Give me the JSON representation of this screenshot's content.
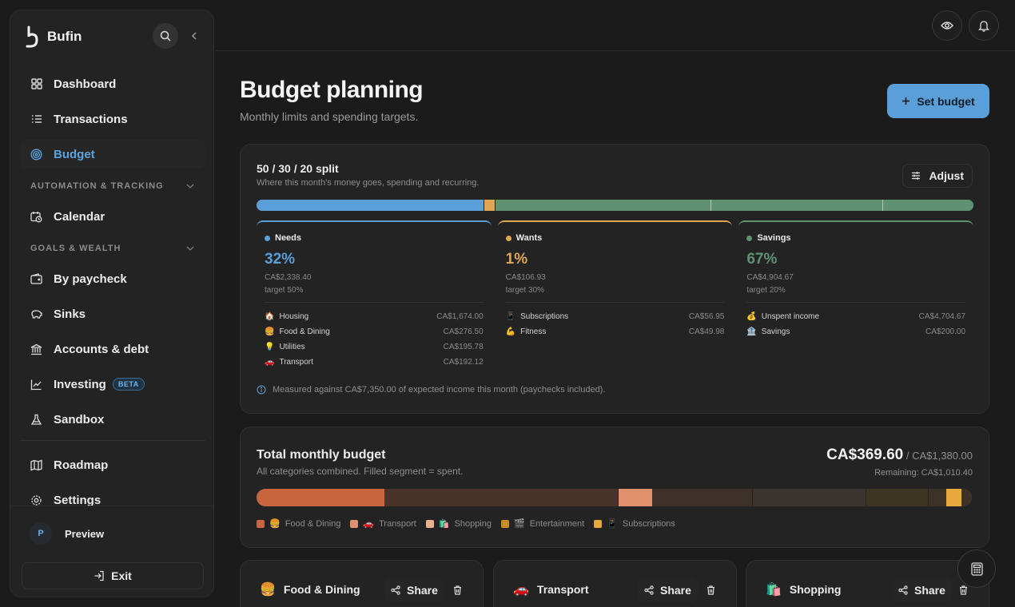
{
  "app": {
    "name": "Bufin",
    "logo_icon": "bufin-logo-icon"
  },
  "sidebar": {
    "nav_main": [
      {
        "label": "Dashboard",
        "icon": "dashboard-grid-icon"
      },
      {
        "label": "Transactions",
        "icon": "list-icon"
      },
      {
        "label": "Budget",
        "icon": "target-icon",
        "active": true
      }
    ],
    "section_automation": "AUTOMATION & TRACKING",
    "nav_automation": [
      {
        "label": "Calendar",
        "icon": "calendar-clock-icon"
      }
    ],
    "section_goals": "GOALS & WEALTH",
    "nav_goals": [
      {
        "label": "By paycheck",
        "icon": "wallet-icon"
      },
      {
        "label": "Sinks",
        "icon": "piggy-bank-icon"
      },
      {
        "label": "Accounts & debt",
        "icon": "bank-icon"
      },
      {
        "label": "Investing",
        "icon": "chart-line-icon",
        "badge": "BETA"
      },
      {
        "label": "Sandbox",
        "icon": "flask-icon"
      }
    ],
    "nav_secondary": [
      {
        "label": "Roadmap",
        "icon": "map-icon"
      },
      {
        "label": "Settings",
        "icon": "gear-icon"
      }
    ],
    "user": {
      "initial": "P",
      "name": "Preview"
    },
    "exit_label": "Exit"
  },
  "header": {
    "title": "Budget planning",
    "subtitle": "Monthly limits and spending targets.",
    "set_budget_label": "Set budget"
  },
  "split": {
    "title": "50 / 30 / 20 split",
    "subtitle": "Where this month's money goes, spending and recurring.",
    "adjust_label": "Adjust",
    "note": "Measured against CA$7,350.00 of expected income this month (paychecks included).",
    "bar": {
      "needs": 0.318,
      "wants": 0.015,
      "savings": 0.667,
      "savings_ticks": [
        0.5,
        0.9
      ]
    },
    "colors": {
      "needs": "#5a9fd8",
      "wants": "#e0a655",
      "savings": "#5f9272"
    },
    "panels": [
      {
        "key": "needs",
        "name": "Needs",
        "pct": "32%",
        "amount": "CA$2,338.40",
        "target": "target 50%",
        "items": [
          {
            "emoji": "🏠",
            "label": "Housing",
            "value": "CA$1,674.00"
          },
          {
            "emoji": "🍔",
            "label": "Food & Dining",
            "value": "CA$276.50"
          },
          {
            "emoji": "💡",
            "label": "Utilities",
            "value": "CA$195.78"
          },
          {
            "emoji": "🚗",
            "label": "Transport",
            "value": "CA$192.12"
          }
        ]
      },
      {
        "key": "wants",
        "name": "Wants",
        "pct": "1%",
        "amount": "CA$106.93",
        "target": "target 30%",
        "items": [
          {
            "emoji": "📱",
            "label": "Subscriptions",
            "value": "CA$56.95"
          },
          {
            "emoji": "💪",
            "label": "Fitness",
            "value": "CA$49.98"
          }
        ]
      },
      {
        "key": "savings",
        "name": "Savings",
        "pct": "67%",
        "amount": "CA$4,904.67",
        "target": "target 20%",
        "items": [
          {
            "emoji": "💰",
            "label": "Unspent income",
            "value": "CA$4,704.67"
          },
          {
            "emoji": "🏦",
            "label": "Savings",
            "value": "CA$200.00"
          }
        ]
      }
    ]
  },
  "total": {
    "title": "Total monthly budget",
    "subtitle": "All categories combined. Filled segment = spent.",
    "spent": "CA$369.60",
    "limit": "/ CA$1,380.00",
    "remaining": "Remaining: CA$1,010.40",
    "segments": [
      {
        "name": "Food & Dining",
        "budget_share": 0.506,
        "spent_share": 0.354,
        "color": "#c8643e",
        "track": "#4a3328"
      },
      {
        "name": "Transport",
        "budget_share": 0.188,
        "spent_share": 0.25,
        "color": "#e0906a",
        "track": "#3d3129"
      },
      {
        "name": "Shopping",
        "budget_share": 0.159,
        "spent_share": 0.0,
        "color": "#e8b08c",
        "track": "#3a3430"
      },
      {
        "name": "Entertainment",
        "budget_share": 0.087,
        "spent_share": 0.0,
        "color": "#c98a1e",
        "track": "#3d3421"
      },
      {
        "name": "Subscriptions",
        "budget_share": 0.06,
        "spent_share": 0.4,
        "color": "#e7a83e",
        "track": "#3b3426"
      }
    ],
    "legend": [
      {
        "emoji": "🍔",
        "label": "Food & Dining",
        "color": "#c8643e"
      },
      {
        "emoji": "🚗",
        "label": "Transport",
        "color": "#e0906a"
      },
      {
        "emoji": "🛍️",
        "label": "Shopping",
        "color": "#e8b08c"
      },
      {
        "emoji": "🎬",
        "label": "Entertainment",
        "color": "#c98a1e"
      },
      {
        "emoji": "📱",
        "label": "Subscriptions",
        "color": "#e7a83e"
      }
    ]
  },
  "categories": [
    {
      "emoji": "🍔",
      "name": "Food & Dining",
      "share_label": "Share"
    },
    {
      "emoji": "🚗",
      "name": "Transport",
      "share_label": "Share"
    },
    {
      "emoji": "🛍️",
      "name": "Shopping",
      "share_label": "Share"
    }
  ]
}
